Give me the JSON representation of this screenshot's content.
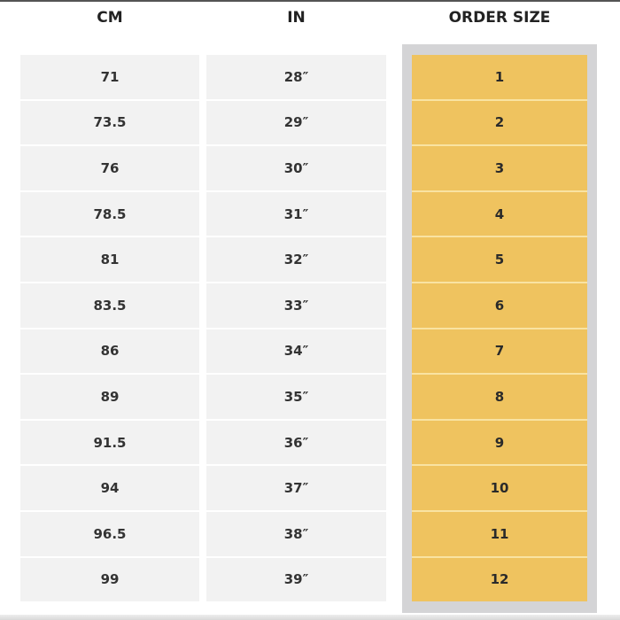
{
  "headers": {
    "cm": "CM",
    "in": "IN",
    "order_size": "ORDER SIZE"
  },
  "rows": [
    {
      "cm": "71",
      "in": "28″",
      "size": "1"
    },
    {
      "cm": "73.5",
      "in": "29″",
      "size": "2"
    },
    {
      "cm": "76",
      "in": "30″",
      "size": "3"
    },
    {
      "cm": "78.5",
      "in": "31″",
      "size": "4"
    },
    {
      "cm": "81",
      "in": "32″",
      "size": "5"
    },
    {
      "cm": "83.5",
      "in": "33″",
      "size": "6"
    },
    {
      "cm": "86",
      "in": "34″",
      "size": "7"
    },
    {
      "cm": "89",
      "in": "35″",
      "size": "8"
    },
    {
      "cm": "91.5",
      "in": "36″",
      "size": "9"
    },
    {
      "cm": "94",
      "in": "37″",
      "size": "10"
    },
    {
      "cm": "96.5",
      "in": "38″",
      "size": "11"
    },
    {
      "cm": "99",
      "in": "39″",
      "size": "12"
    }
  ],
  "colors": {
    "highlight": "#efc35f",
    "highlight_frame": "#d4d4d6",
    "cell": "#f2f2f2"
  }
}
